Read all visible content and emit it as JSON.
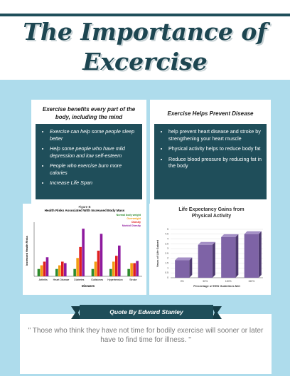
{
  "header": {
    "title": "The Importance of Excercise"
  },
  "panels": [
    {
      "heading": "Exercise benefits every part of the body, including the mind",
      "items": [
        "Exercise can help some people sleep better",
        "Help some people who have mild depression and low self-esteem",
        "People who exercise burn more calories",
        "Increase Life Span"
      ]
    },
    {
      "heading": "Exercise Helps Prevent Disease",
      "items": [
        "help prevent heart disease and stroke by strengthening your heart muscle",
        "Physical activity helps to reduce body fat",
        "Reduce blood pressure by reducing fat in the body"
      ]
    }
  ],
  "figures": [
    {
      "type": "bar",
      "label": "Figure B",
      "title": "Health Risks Associated With Increased Body Mass",
      "y_label": "Increased Health Risks",
      "x_label": "Diseases",
      "categories": [
        "Arthritis",
        "Heart Disease",
        "Diabetes",
        "Gallstones",
        "Hypertension",
        "Stroke"
      ],
      "series": [
        {
          "name": "Normal body weight",
          "color": "#2e8b2e",
          "values": [
            1,
            1,
            1,
            1,
            1,
            1
          ]
        },
        {
          "name": "Overweight",
          "color": "#f39c12",
          "values": [
            1.5,
            1.5,
            2.5,
            2,
            2,
            1.8
          ]
        },
        {
          "name": "Obesity",
          "color": "#e02020",
          "values": [
            2,
            2,
            4,
            3.5,
            2.8,
            1.8
          ]
        },
        {
          "name": "Morbid Obesity",
          "color": "#8e1a9e",
          "values": [
            2.6,
            1.8,
            6.5,
            5.8,
            4.2,
            2.1
          ]
        }
      ],
      "ylim": [
        0,
        7
      ]
    },
    {
      "type": "bar",
      "title": "Life Expectancy Gains from Physical Activity",
      "y_label": "Years of Life Gained",
      "x_label": "Percentage of HHS Guidelines Met",
      "categories": [
        "0%",
        "50%",
        "100%",
        "150%"
      ],
      "values": [
        1.8,
        3.4,
        4.2,
        4.5
      ],
      "color": "#7e63a6",
      "ylim": [
        0,
        5
      ],
      "yticks": [
        0,
        0.5,
        1,
        1.5,
        2,
        2.5,
        3,
        3.5,
        4,
        4.5,
        5
      ]
    }
  ],
  "quote": {
    "heading": "Quote By Edward Stanley",
    "text": "\" Those who think they have not time for bodily exercise will sooner or later have to find time for illness. \""
  }
}
